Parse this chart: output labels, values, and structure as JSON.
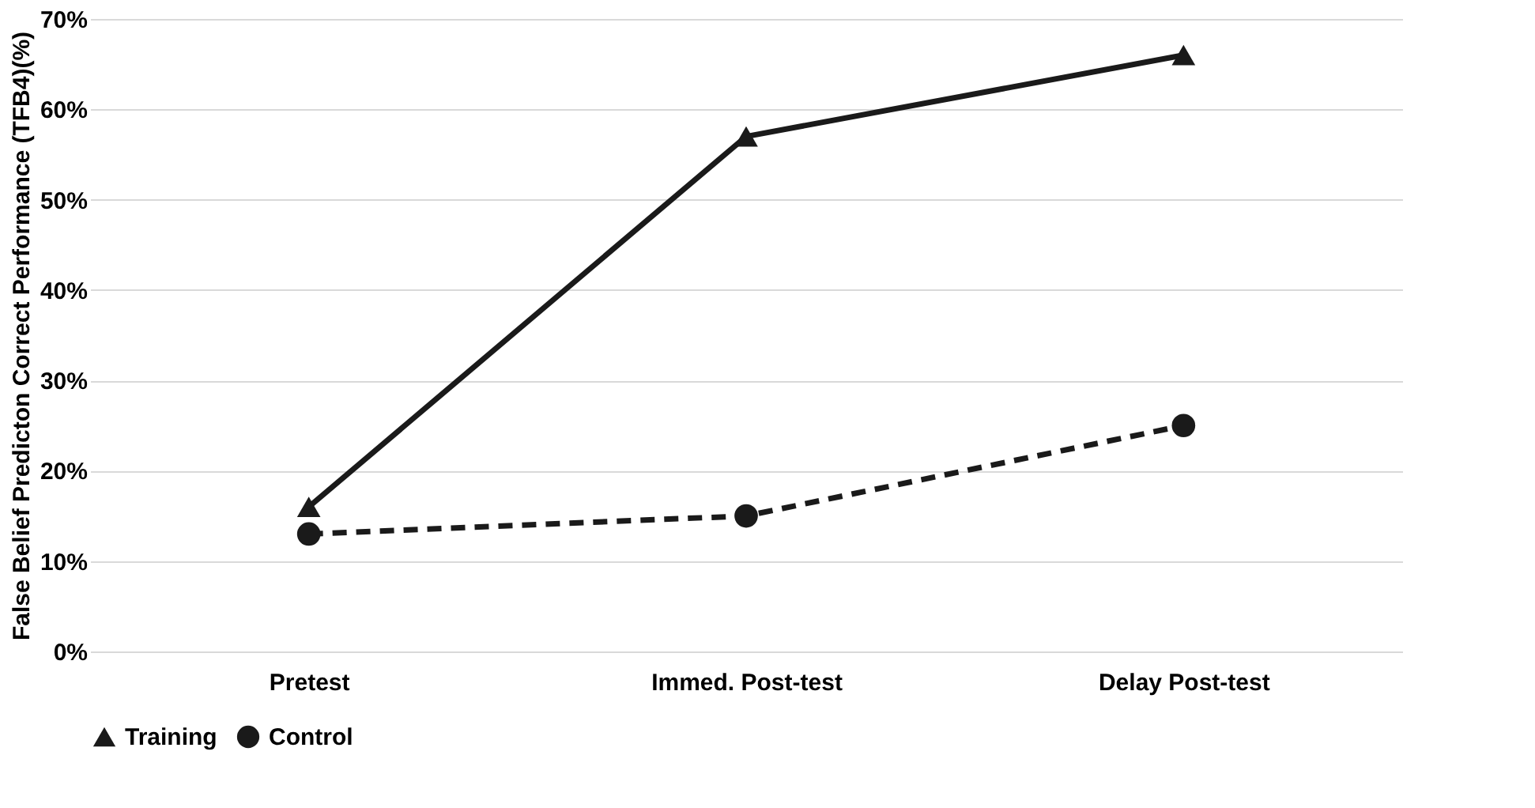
{
  "chart_data": {
    "type": "line",
    "ylabel": "False Belief Predicton Correct Performance (TFB4)(%)",
    "categories": [
      "Pretest",
      "Immed. Post-test",
      "Delay Post-test"
    ],
    "series": [
      {
        "name": "Training",
        "color": "#1a1a1a",
        "values": [
          16,
          57,
          66
        ],
        "marker": "triangle",
        "line_style": "solid"
      },
      {
        "name": "Control",
        "color": "#1a1a1a",
        "values": [
          13,
          15,
          25
        ],
        "marker": "circle",
        "line_style": "dashed"
      }
    ],
    "ylim": [
      0,
      70
    ],
    "yticks": [
      {
        "value": 0,
        "label": "0%"
      },
      {
        "value": 10,
        "label": "10%"
      },
      {
        "value": 20,
        "label": "20%"
      },
      {
        "value": 30,
        "label": "30%"
      },
      {
        "value": 40,
        "label": "40%"
      },
      {
        "value": 50,
        "label": "50%"
      },
      {
        "value": 60,
        "label": "60%"
      },
      {
        "value": 70,
        "label": "70%"
      }
    ],
    "grid": "y",
    "legend": "bottom"
  }
}
